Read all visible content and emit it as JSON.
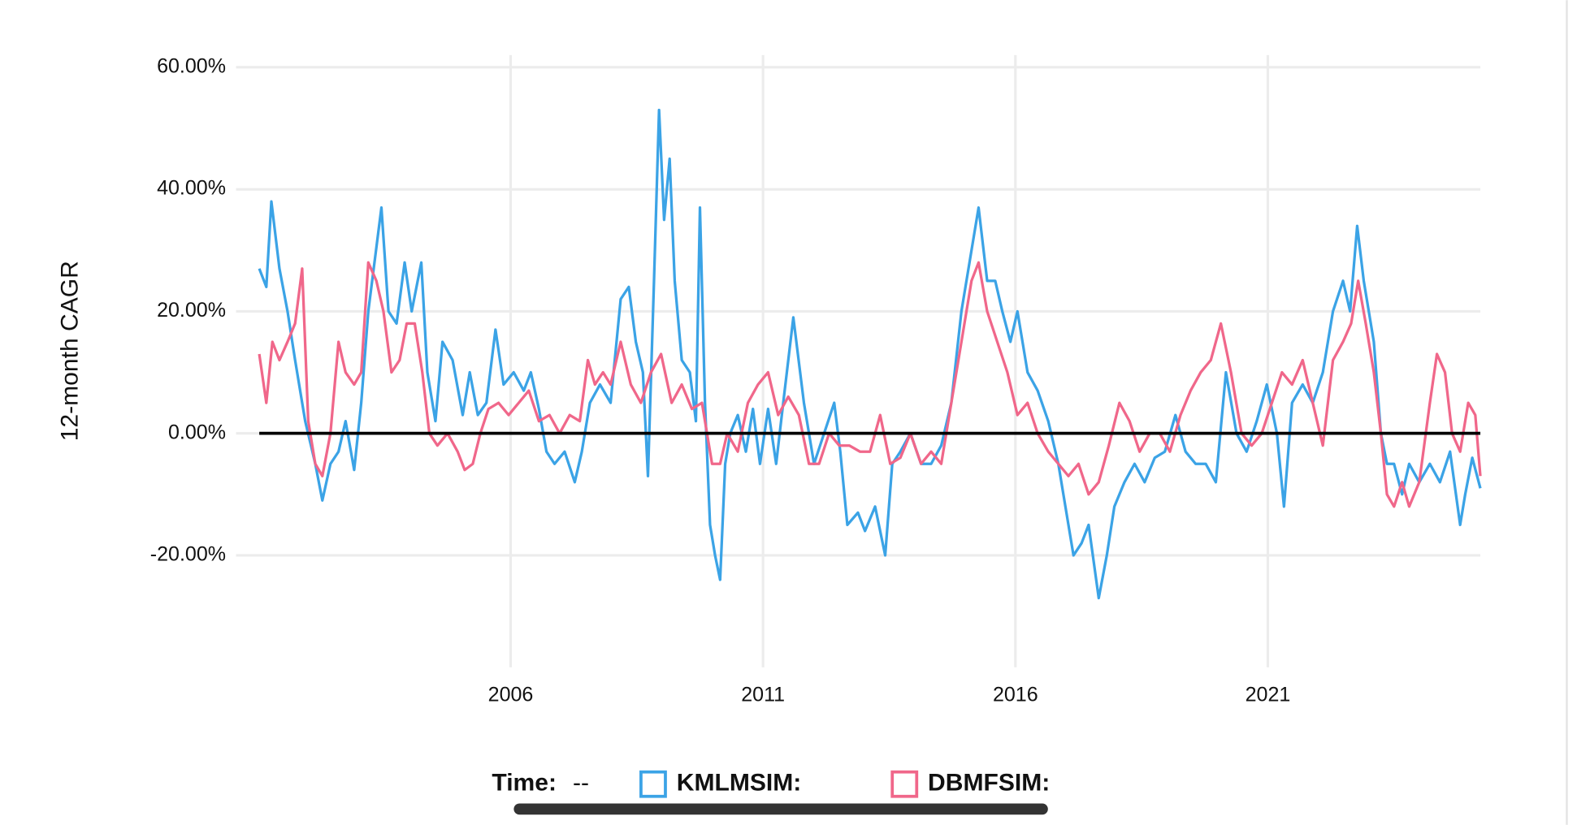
{
  "chart_data": {
    "type": "line",
    "y_label": "12-month CAGR",
    "legend_time_label": "Time:",
    "legend_time_value": "--",
    "xlim": [
      2000.56,
      2025.21
    ],
    "xticks": [
      2006,
      2011,
      2016,
      2021
    ],
    "ylim": [
      -37,
      60
    ],
    "yticks": [
      {
        "value": -20,
        "label": "-20.00%"
      },
      {
        "value": 0,
        "label": "0.00%"
      },
      {
        "value": 20,
        "label": "20.00%"
      },
      {
        "value": 40,
        "label": "40.00%"
      },
      {
        "value": 60,
        "label": "60.00%"
      }
    ],
    "grid": true,
    "zero_line": true,
    "legend": "bottom",
    "series": [
      {
        "name": "KMLMSIM:",
        "color": "#3ba3e6",
        "x": [
          2001.02,
          2001.16,
          2001.26,
          2001.42,
          2001.58,
          2001.73,
          2001.93,
          2002.13,
          2002.27,
          2002.43,
          2002.59,
          2002.73,
          2002.9,
          2003.04,
          2003.18,
          2003.44,
          2003.58,
          2003.74,
          2003.9,
          2004.04,
          2004.23,
          2004.35,
          2004.51,
          2004.65,
          2004.85,
          2005.05,
          2005.19,
          2005.35,
          2005.52,
          2005.7,
          2005.86,
          2006.06,
          2006.26,
          2006.4,
          2006.56,
          2006.71,
          2006.87,
          2007.07,
          2007.27,
          2007.41,
          2007.57,
          2007.77,
          2007.98,
          2008.18,
          2008.34,
          2008.48,
          2008.62,
          2008.72,
          2008.84,
          2008.94,
          2009.04,
          2009.15,
          2009.25,
          2009.39,
          2009.55,
          2009.67,
          2009.75,
          2009.85,
          2009.95,
          2010.05,
          2010.15,
          2010.25,
          2010.35,
          2010.5,
          2010.66,
          2010.8,
          2010.94,
          2011.1,
          2011.26,
          2011.4,
          2011.6,
          2011.81,
          2012.01,
          2012.21,
          2012.41,
          2012.53,
          2012.67,
          2012.88,
          2013.02,
          2013.22,
          2013.42,
          2013.56,
          2013.72,
          2013.92,
          2014.13,
          2014.33,
          2014.53,
          2014.73,
          2014.93,
          2015.13,
          2015.27,
          2015.44,
          2015.6,
          2015.74,
          2015.9,
          2016.04,
          2016.24,
          2016.44,
          2016.65,
          2016.85,
          2017.05,
          2017.15,
          2017.31,
          2017.45,
          2017.65,
          2017.81,
          2017.96,
          2018.16,
          2018.36,
          2018.56,
          2018.76,
          2018.96,
          2019.17,
          2019.37,
          2019.57,
          2019.77,
          2019.97,
          2020.17,
          2020.38,
          2020.58,
          2020.78,
          2020.98,
          2021.18,
          2021.32,
          2021.48,
          2021.69,
          2021.89,
          2022.09,
          2022.29,
          2022.49,
          2022.63,
          2022.77,
          2022.9,
          2023.1,
          2023.24,
          2023.36,
          2023.5,
          2023.66,
          2023.8,
          2024.0,
          2024.21,
          2024.41,
          2024.61,
          2024.81,
          2024.91,
          2025.05,
          2025.21
        ],
        "values": [
          27,
          24,
          38,
          27,
          20,
          12,
          2,
          -5,
          -11,
          -5,
          -3,
          2,
          -6,
          5,
          20,
          37,
          20,
          18,
          28,
          20,
          28,
          10,
          2,
          15,
          12,
          3,
          10,
          3,
          5,
          17,
          8,
          10,
          7,
          10,
          4,
          -3,
          -5,
          -3,
          -8,
          -3,
          5,
          8,
          5,
          22,
          24,
          15,
          10,
          -7,
          25,
          53,
          35,
          45,
          25,
          12,
          10,
          2,
          37,
          5,
          -15,
          -20,
          -24,
          -5,
          0,
          3,
          -3,
          4,
          -5,
          4,
          -5,
          5,
          19,
          5,
          -5,
          0,
          5,
          -3,
          -15,
          -13,
          -16,
          -12,
          -20,
          -5,
          -3,
          0,
          -5,
          -5,
          -2,
          5,
          20,
          30,
          37,
          25,
          25,
          20,
          15,
          20,
          10,
          7,
          2,
          -5,
          -15,
          -20,
          -18,
          -15,
          -27,
          -20,
          -12,
          -8,
          -5,
          -8,
          -4,
          -3,
          3,
          -3,
          -5,
          -5,
          -8,
          10,
          0,
          -3,
          2,
          8,
          0,
          -12,
          5,
          8,
          5,
          10,
          20,
          25,
          20,
          34,
          25,
          15,
          0,
          -5,
          -5,
          -10,
          -5,
          -8,
          -5,
          -8,
          -3,
          -15,
          -10,
          -4,
          -9
        ]
      },
      {
        "name": "DBMFSIM:",
        "color": "#f0678a",
        "x": [
          2001.02,
          2001.16,
          2001.28,
          2001.42,
          2001.58,
          2001.73,
          2001.87,
          2001.99,
          2002.13,
          2002.27,
          2002.43,
          2002.59,
          2002.73,
          2002.9,
          2003.04,
          2003.18,
          2003.34,
          2003.48,
          2003.64,
          2003.8,
          2003.94,
          2004.1,
          2004.25,
          2004.39,
          2004.55,
          2004.75,
          2004.95,
          2005.09,
          2005.25,
          2005.4,
          2005.56,
          2005.76,
          2005.96,
          2006.16,
          2006.36,
          2006.56,
          2006.77,
          2006.97,
          2007.17,
          2007.37,
          2007.53,
          2007.67,
          2007.83,
          2007.98,
          2008.18,
          2008.38,
          2008.58,
          2008.78,
          2008.98,
          2009.19,
          2009.39,
          2009.59,
          2009.79,
          2009.99,
          2010.15,
          2010.29,
          2010.5,
          2010.7,
          2010.9,
          2011.1,
          2011.3,
          2011.5,
          2011.71,
          2011.91,
          2012.11,
          2012.31,
          2012.51,
          2012.71,
          2012.92,
          2013.12,
          2013.32,
          2013.52,
          2013.72,
          2013.92,
          2014.13,
          2014.33,
          2014.53,
          2014.73,
          2014.93,
          2015.13,
          2015.27,
          2015.44,
          2015.64,
          2015.84,
          2016.04,
          2016.24,
          2016.44,
          2016.65,
          2016.85,
          2017.05,
          2017.25,
          2017.45,
          2017.65,
          2017.85,
          2018.06,
          2018.26,
          2018.46,
          2018.66,
          2018.86,
          2019.06,
          2019.27,
          2019.47,
          2019.67,
          2019.87,
          2020.07,
          2020.27,
          2020.48,
          2020.68,
          2020.88,
          2021.08,
          2021.28,
          2021.48,
          2021.69,
          2021.89,
          2022.09,
          2022.29,
          2022.49,
          2022.65,
          2022.79,
          2022.94,
          2023.1,
          2023.24,
          2023.36,
          2023.5,
          2023.66,
          2023.8,
          2024.0,
          2024.21,
          2024.35,
          2024.51,
          2024.65,
          2024.81,
          2024.97,
          2025.11,
          2025.21
        ],
        "values": [
          13,
          5,
          15,
          12,
          15,
          18,
          27,
          2,
          -5,
          -7,
          0,
          15,
          10,
          8,
          10,
          28,
          25,
          20,
          10,
          12,
          18,
          18,
          10,
          0,
          -2,
          0,
          -3,
          -6,
          -5,
          0,
          4,
          5,
          3,
          5,
          7,
          2,
          3,
          0,
          3,
          2,
          12,
          8,
          10,
          8,
          15,
          8,
          5,
          10,
          13,
          5,
          8,
          4,
          5,
          -5,
          -5,
          0,
          -3,
          5,
          8,
          10,
          3,
          6,
          3,
          -5,
          -5,
          0,
          -2,
          -2,
          -3,
          -3,
          3,
          -5,
          -4,
          0,
          -5,
          -3,
          -5,
          5,
          15,
          25,
          28,
          20,
          15,
          10,
          3,
          5,
          0,
          -3,
          -5,
          -7,
          -5,
          -10,
          -8,
          -2,
          5,
          2,
          -3,
          0,
          0,
          -3,
          3,
          7,
          10,
          12,
          18,
          10,
          0,
          -2,
          0,
          5,
          10,
          8,
          12,
          5,
          -2,
          12,
          15,
          18,
          25,
          18,
          10,
          0,
          -10,
          -12,
          -8,
          -12,
          -8,
          5,
          13,
          10,
          0,
          -3,
          5,
          3,
          -7
        ]
      }
    ]
  }
}
